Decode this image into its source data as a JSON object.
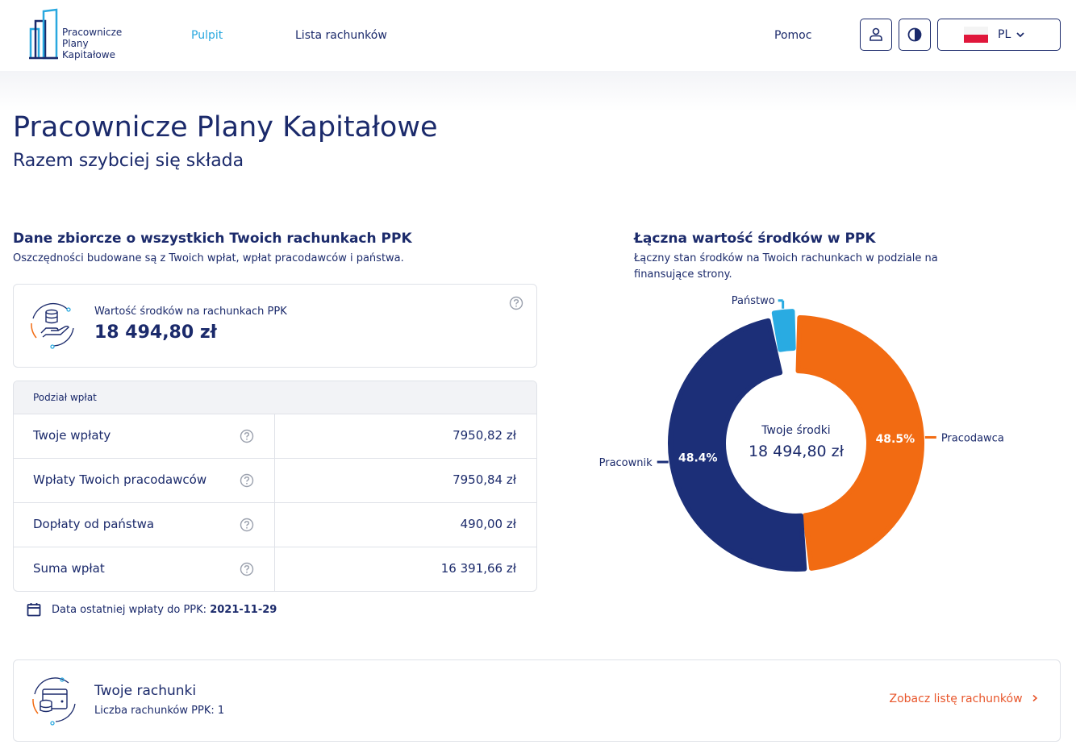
{
  "header": {
    "logo_lines": [
      "Pracownicze",
      "Plany",
      "Kapitałowe"
    ],
    "nav": [
      {
        "label": "Pulpit",
        "active": true
      },
      {
        "label": "Lista rachunków",
        "active": false
      }
    ],
    "help_label": "Pomoc",
    "lang_label": "PL",
    "icons": {
      "profile": "user-icon",
      "contrast": "contrast-icon",
      "dropdown": "chevron-down-icon"
    }
  },
  "page": {
    "title": "Pracownicze Plany Kapitałowe",
    "subtitle": "Razem szybciej się składa"
  },
  "summary": {
    "heading": "Dane zbiorcze o wszystkich Twoich rachunkach PPK",
    "description": "Oszczędności budowane są z Twoich wpłat, wpłat pracodawców i państwa.",
    "value_label": "Wartość środków na rachunkach PPK",
    "value": "18 494,80 zł",
    "breakdown_header": "Podział wpłat",
    "rows": [
      {
        "name": "Twoje wpłaty",
        "amount": "7950,82 zł"
      },
      {
        "name": "Wpłaty Twoich pracodawców",
        "amount": "7950,84 zł"
      },
      {
        "name": "Dopłaty od państwa",
        "amount": "490,00 zł"
      },
      {
        "name": "Suma wpłat",
        "amount": "16 391,66 zł"
      }
    ],
    "last_payment_label": "Data ostatniej wpłaty do PPK:",
    "last_payment_date": "2021-11-29"
  },
  "chart_section": {
    "heading": "Łączna wartość środków w PPK",
    "description_line1": "Łączny stan środków na Twoich rachunkach w podziale na",
    "description_line2": "finansujące strony."
  },
  "chart_data": {
    "type": "pie",
    "center_label": "Twoje środki",
    "center_value": "18 494,80 zł",
    "slices": [
      {
        "name": "Pracodawca",
        "value": 48.5,
        "label": "48.5%",
        "color": "#f26b12"
      },
      {
        "name": "Pracownik",
        "value": 48.4,
        "label": "48.4%",
        "color": "#1c2f78"
      },
      {
        "name": "Państwo",
        "value": 3.1,
        "label": "",
        "color": "#29abe2"
      }
    ]
  },
  "accounts": {
    "title": "Twoje rachunki",
    "subtitle": "Liczba rachunków PPK: 1",
    "link_label": "Zobacz listę rachunków"
  },
  "colors": {
    "navy": "#1b2a6b",
    "accent_blue": "#29a8df",
    "orange": "#f26b12",
    "link_orange": "#e8552a"
  }
}
